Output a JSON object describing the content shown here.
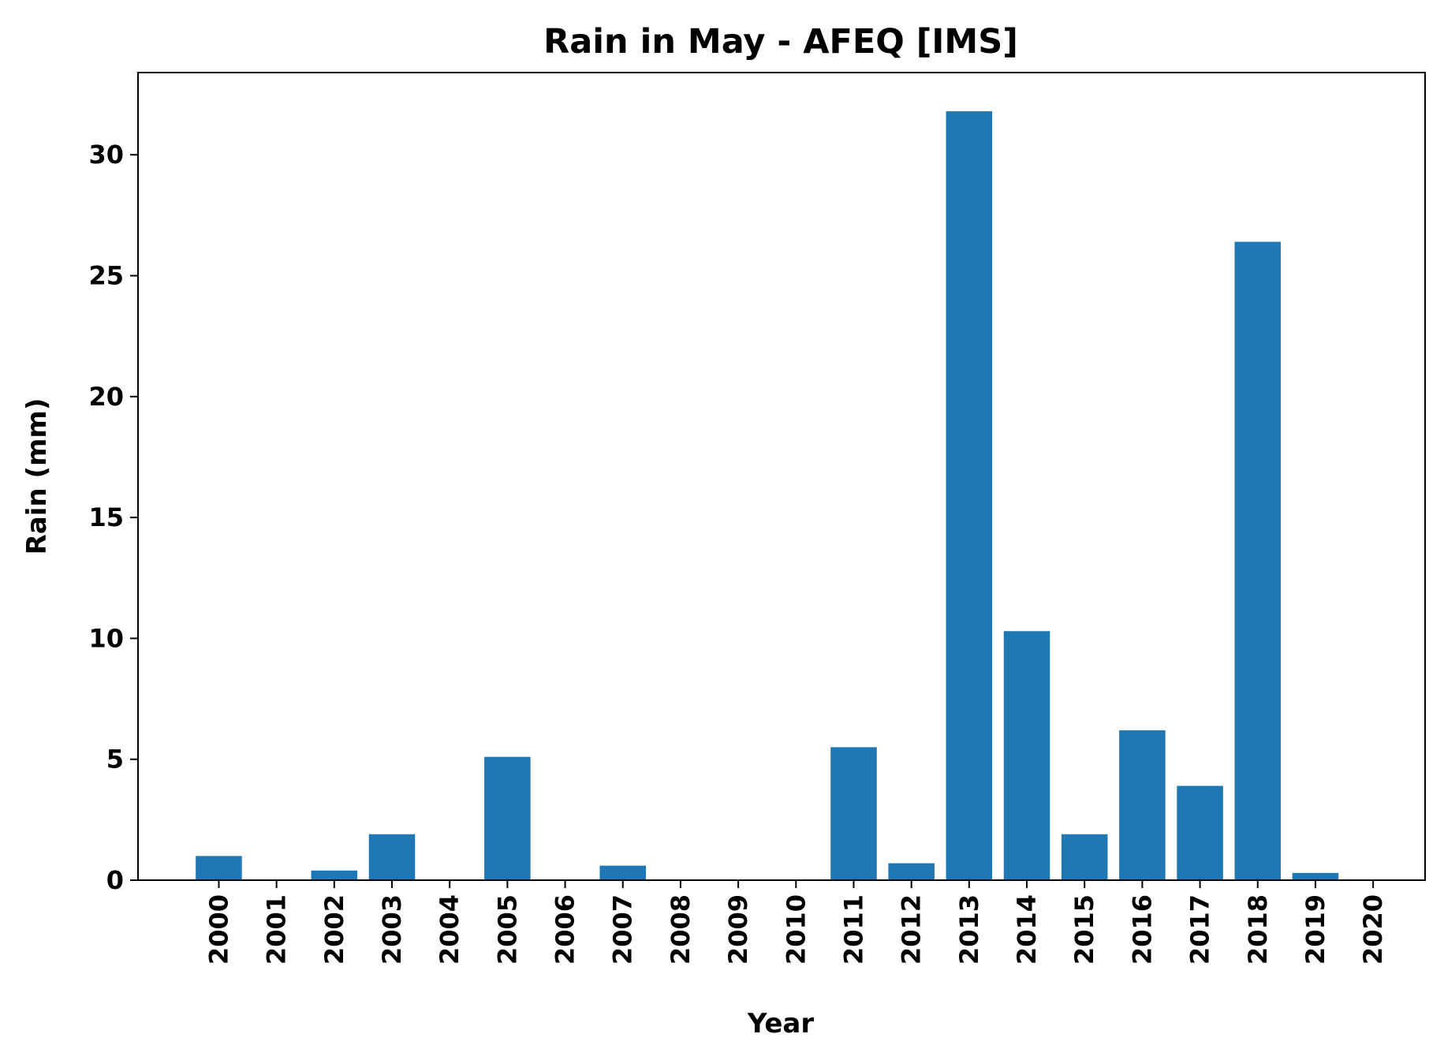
{
  "chart_data": {
    "type": "bar",
    "title": "Rain in May - AFEQ [IMS]",
    "xlabel": "Year",
    "ylabel": "Rain (mm)",
    "categories": [
      "2000",
      "2001",
      "2002",
      "2003",
      "2004",
      "2005",
      "2006",
      "2007",
      "2008",
      "2009",
      "2010",
      "2011",
      "2012",
      "2013",
      "2014",
      "2015",
      "2016",
      "2017",
      "2018",
      "2019",
      "2020"
    ],
    "values": [
      1.0,
      0.0,
      0.4,
      1.9,
      0.0,
      5.1,
      0.0,
      0.6,
      0.0,
      0.0,
      0.0,
      5.5,
      0.7,
      31.8,
      10.3,
      1.9,
      6.2,
      3.9,
      26.4,
      0.3,
      0.0
    ],
    "yticks": [
      "0",
      "5",
      "10",
      "15",
      "20",
      "25",
      "30"
    ],
    "ylim": [
      0,
      33.4
    ],
    "xlim": [
      -1.4,
      20.9
    ],
    "bar_color": "#1f77b4",
    "grid": false,
    "legend": "none"
  }
}
